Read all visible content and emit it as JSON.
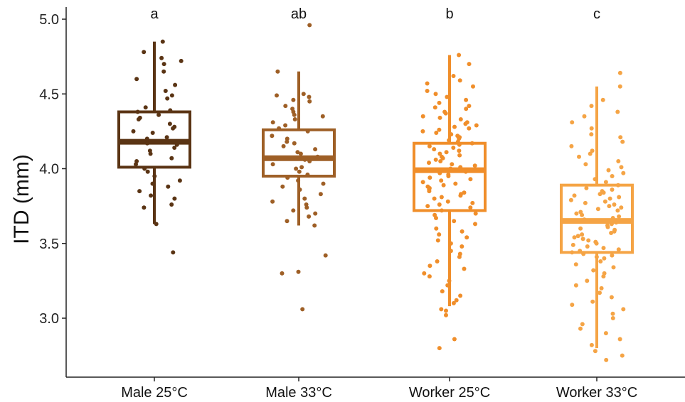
{
  "chart_data": {
    "type": "boxplot",
    "title": "",
    "xlabel": "",
    "ylabel": "ITD (mm)",
    "ylim": [
      2.7,
      5.05
    ],
    "yticks": [
      "3.0",
      "3.5",
      "4.0",
      "4.5",
      "5.0"
    ],
    "grid": false,
    "legend": "none",
    "categories": [
      "Male 25°C",
      "Male 33°C",
      "Worker 25°C",
      "Worker 33°C"
    ],
    "colors": [
      "#5a3414",
      "#9e5f26",
      "#f08e2a",
      "#f5a445"
    ],
    "significance_letters": [
      "a",
      "ab",
      "b",
      "c"
    ],
    "boxes": [
      {
        "category": "Male 25°C",
        "min": 3.63,
        "q1": 4.01,
        "median": 4.18,
        "q3": 4.38,
        "max": 4.85
      },
      {
        "category": "Male 33°C",
        "min": 3.62,
        "q1": 3.95,
        "median": 4.07,
        "q3": 4.26,
        "max": 4.65
      },
      {
        "category": "Worker 25°C",
        "min": 3.08,
        "q1": 3.72,
        "median": 3.99,
        "q3": 4.17,
        "max": 4.76
      },
      {
        "category": "Worker 33°C",
        "min": 2.8,
        "q1": 3.44,
        "median": 3.65,
        "q3": 3.89,
        "max": 4.55
      }
    ],
    "points": [
      [
        4.85,
        4.78,
        4.74,
        4.72,
        4.7,
        4.65,
        4.6,
        4.56,
        4.52,
        4.49,
        4.47,
        4.41,
        4.39,
        4.38,
        4.36,
        4.34,
        4.33,
        4.3,
        4.28,
        4.27,
        4.25,
        4.24,
        4.21,
        4.2,
        4.18,
        4.17,
        4.16,
        4.14,
        4.12,
        4.1,
        4.07,
        4.05,
        4.03,
        4.0,
        3.98,
        3.95,
        3.92,
        3.9,
        3.88,
        3.85,
        3.82,
        3.8,
        3.76,
        3.74,
        3.63,
        3.44
      ],
      [
        4.96,
        4.65,
        4.5,
        4.49,
        4.48,
        4.46,
        4.45,
        4.42,
        4.4,
        4.38,
        4.36,
        4.35,
        4.33,
        4.31,
        4.29,
        4.27,
        4.25,
        4.22,
        4.2,
        4.18,
        4.17,
        4.15,
        4.13,
        4.11,
        4.1,
        4.08,
        4.06,
        4.05,
        4.03,
        4.01,
        4.0,
        3.98,
        3.96,
        3.94,
        3.92,
        3.9,
        3.88,
        3.86,
        3.83,
        3.8,
        3.78,
        3.76,
        3.74,
        3.72,
        3.7,
        3.68,
        3.65,
        3.62,
        3.42,
        3.31,
        3.3,
        3.06
      ],
      [
        4.76,
        4.7,
        4.62,
        4.59,
        4.57,
        4.55,
        4.52,
        4.5,
        4.48,
        4.46,
        4.44,
        4.42,
        4.41,
        4.4,
        4.38,
        4.37,
        4.35,
        4.34,
        4.33,
        4.31,
        4.3,
        4.29,
        4.28,
        4.27,
        4.26,
        4.25,
        4.24,
        4.23,
        4.22,
        4.21,
        4.2,
        4.19,
        4.18,
        4.17,
        4.16,
        4.15,
        4.14,
        4.13,
        4.12,
        4.11,
        4.1,
        4.09,
        4.08,
        4.07,
        4.06,
        4.05,
        4.04,
        4.03,
        4.02,
        4.01,
        4.0,
        3.99,
        3.98,
        3.97,
        3.96,
        3.95,
        3.94,
        3.93,
        3.92,
        3.91,
        3.9,
        3.89,
        3.88,
        3.87,
        3.86,
        3.85,
        3.84,
        3.83,
        3.82,
        3.81,
        3.8,
        3.78,
        3.77,
        3.76,
        3.75,
        3.74,
        3.72,
        3.7,
        3.69,
        3.67,
        3.65,
        3.63,
        3.6,
        3.58,
        3.56,
        3.54,
        3.52,
        3.5,
        3.48,
        3.45,
        3.43,
        3.41,
        3.38,
        3.35,
        3.33,
        3.3,
        3.28,
        3.25,
        3.22,
        3.18,
        3.15,
        3.12,
        3.1,
        3.06,
        3.05,
        3.02,
        2.86,
        2.8
      ],
      [
        4.64,
        4.55,
        4.46,
        4.42,
        4.38,
        4.35,
        4.31,
        4.27,
        4.23,
        4.21,
        4.18,
        4.15,
        4.12,
        4.1,
        4.08,
        4.05,
        4.03,
        4.01,
        3.99,
        3.97,
        3.95,
        3.93,
        3.91,
        3.89,
        3.87,
        3.86,
        3.85,
        3.84,
        3.83,
        3.82,
        3.81,
        3.8,
        3.79,
        3.78,
        3.77,
        3.76,
        3.75,
        3.74,
        3.73,
        3.72,
        3.71,
        3.7,
        3.69,
        3.68,
        3.67,
        3.66,
        3.65,
        3.64,
        3.63,
        3.62,
        3.61,
        3.6,
        3.59,
        3.58,
        3.57,
        3.56,
        3.55,
        3.54,
        3.53,
        3.52,
        3.51,
        3.5,
        3.49,
        3.48,
        3.47,
        3.46,
        3.45,
        3.44,
        3.43,
        3.42,
        3.41,
        3.4,
        3.38,
        3.36,
        3.34,
        3.32,
        3.3,
        3.28,
        3.25,
        3.22,
        3.2,
        3.17,
        3.14,
        3.11,
        3.09,
        3.06,
        3.03,
        3.0,
        2.96,
        2.93,
        2.9,
        2.86,
        2.82,
        2.78,
        2.75,
        2.72
      ]
    ]
  }
}
